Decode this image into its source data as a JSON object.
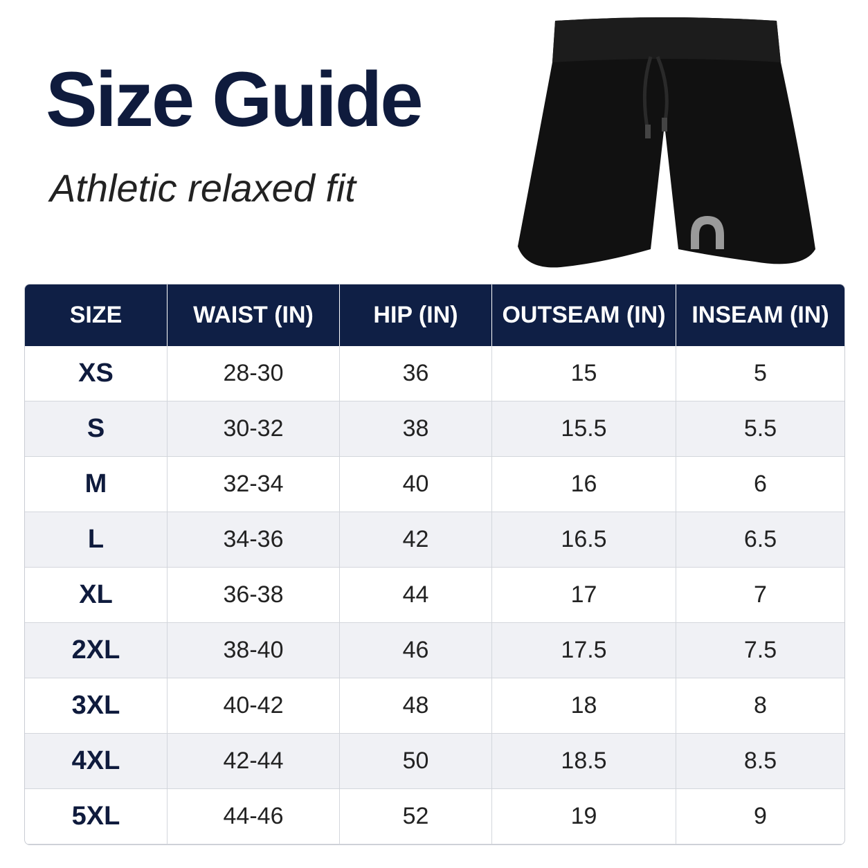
{
  "header": {
    "title": "Size Guide",
    "subtitle": "Athletic relaxed fit"
  },
  "table": {
    "columns": [
      "SIZE",
      "WAIST (IN)",
      "HIP (IN)",
      "OUTSEAM (IN)",
      "INSEAM (IN)"
    ],
    "rows": [
      [
        "XS",
        "28-30",
        "36",
        "15",
        "5"
      ],
      [
        "S",
        "30-32",
        "38",
        "15.5",
        "5.5"
      ],
      [
        "M",
        "32-34",
        "40",
        "16",
        "6"
      ],
      [
        "L",
        "34-36",
        "42",
        "16.5",
        "6.5"
      ],
      [
        "XL",
        "36-38",
        "44",
        "17",
        "7"
      ],
      [
        "2XL",
        "38-40",
        "46",
        "17.5",
        "7.5"
      ],
      [
        "3XL",
        "40-42",
        "48",
        "18",
        "8"
      ],
      [
        "4XL",
        "42-44",
        "50",
        "18.5",
        "8.5"
      ],
      [
        "5XL",
        "44-46",
        "52",
        "19",
        "9"
      ]
    ]
  }
}
